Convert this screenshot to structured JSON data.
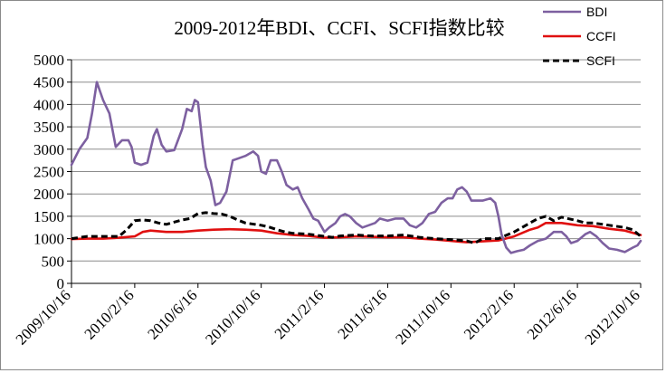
{
  "chart_data": {
    "type": "line",
    "title": "2009-2012年BDI、CCFI、SCFI指数比较",
    "xlabel": "",
    "ylabel": "",
    "ylim": [
      0,
      5000
    ],
    "yticks": [
      "0",
      "500",
      "1000",
      "1500",
      "2000",
      "2500",
      "3000",
      "3500",
      "4000",
      "4500",
      "5000"
    ],
    "xticks": [
      "2009/10/16",
      "2010/2/16",
      "2010/6/16",
      "2010/10/16",
      "2011/2/16",
      "2011/6/16",
      "2011/10/16",
      "2012/2/16",
      "2012/6/16",
      "2012/10/16"
    ],
    "grid": "horizontal",
    "legend_position": "top-right",
    "series": [
      {
        "name": "BDI",
        "color": "#7d60a0",
        "style": "solid",
        "points": [
          [
            0,
            2650
          ],
          [
            0.5,
            3000
          ],
          [
            1,
            3250
          ],
          [
            1.3,
            3800
          ],
          [
            1.6,
            4500
          ],
          [
            2,
            4100
          ],
          [
            2.4,
            3800
          ],
          [
            2.8,
            3050
          ],
          [
            3.2,
            3200
          ],
          [
            3.6,
            3200
          ],
          [
            3.8,
            3050
          ],
          [
            4,
            2700
          ],
          [
            4.4,
            2650
          ],
          [
            4.8,
            2700
          ],
          [
            5.2,
            3300
          ],
          [
            5.4,
            3450
          ],
          [
            5.7,
            3100
          ],
          [
            6,
            2950
          ],
          [
            6.5,
            2980
          ],
          [
            7,
            3450
          ],
          [
            7.3,
            3900
          ],
          [
            7.6,
            3850
          ],
          [
            7.8,
            4100
          ],
          [
            8,
            4050
          ],
          [
            8.3,
            3100
          ],
          [
            8.5,
            2600
          ],
          [
            8.8,
            2300
          ],
          [
            9.1,
            1750
          ],
          [
            9.4,
            1800
          ],
          [
            9.8,
            2050
          ],
          [
            10.2,
            2750
          ],
          [
            10.6,
            2800
          ],
          [
            11,
            2850
          ],
          [
            11.5,
            2950
          ],
          [
            11.8,
            2850
          ],
          [
            12,
            2500
          ],
          [
            12.3,
            2450
          ],
          [
            12.6,
            2750
          ],
          [
            13,
            2750
          ],
          [
            13.3,
            2500
          ],
          [
            13.6,
            2200
          ],
          [
            14,
            2100
          ],
          [
            14.3,
            2150
          ],
          [
            14.6,
            1900
          ],
          [
            15,
            1650
          ],
          [
            15.3,
            1450
          ],
          [
            15.6,
            1400
          ],
          [
            16,
            1150
          ],
          [
            16.3,
            1250
          ],
          [
            16.7,
            1350
          ],
          [
            17,
            1500
          ],
          [
            17.3,
            1550
          ],
          [
            17.6,
            1500
          ],
          [
            18,
            1350
          ],
          [
            18.4,
            1250
          ],
          [
            18.8,
            1300
          ],
          [
            19.2,
            1350
          ],
          [
            19.5,
            1450
          ],
          [
            20,
            1400
          ],
          [
            20.5,
            1450
          ],
          [
            21,
            1450
          ],
          [
            21.4,
            1300
          ],
          [
            21.8,
            1250
          ],
          [
            22.2,
            1350
          ],
          [
            22.6,
            1550
          ],
          [
            23,
            1600
          ],
          [
            23.4,
            1800
          ],
          [
            23.8,
            1900
          ],
          [
            24.1,
            1900
          ],
          [
            24.4,
            2100
          ],
          [
            24.7,
            2150
          ],
          [
            25,
            2050
          ],
          [
            25.3,
            1850
          ],
          [
            25.6,
            1850
          ],
          [
            26,
            1850
          ],
          [
            26.5,
            1900
          ],
          [
            26.8,
            1800
          ],
          [
            27,
            1500
          ],
          [
            27.2,
            1100
          ],
          [
            27.5,
            800
          ],
          [
            27.8,
            680
          ],
          [
            28.2,
            720
          ],
          [
            28.6,
            750
          ],
          [
            29,
            850
          ],
          [
            29.5,
            950
          ],
          [
            30,
            1000
          ],
          [
            30.5,
            1150
          ],
          [
            31,
            1150
          ],
          [
            31.3,
            1050
          ],
          [
            31.6,
            900
          ],
          [
            32,
            950
          ],
          [
            32.5,
            1100
          ],
          [
            32.8,
            1150
          ],
          [
            33.2,
            1050
          ],
          [
            33.6,
            900
          ],
          [
            34,
            780
          ],
          [
            34.5,
            750
          ],
          [
            35,
            700
          ],
          [
            35.5,
            800
          ],
          [
            35.8,
            850
          ],
          [
            36,
            950
          ]
        ]
      },
      {
        "name": "CCFI",
        "color": "#e01010",
        "style": "solid",
        "points": [
          [
            0,
            990
          ],
          [
            1,
            1000
          ],
          [
            2,
            1000
          ],
          [
            3,
            1020
          ],
          [
            4,
            1050
          ],
          [
            4.5,
            1150
          ],
          [
            5,
            1180
          ],
          [
            6,
            1150
          ],
          [
            7,
            1150
          ],
          [
            8,
            1180
          ],
          [
            9,
            1200
          ],
          [
            10,
            1210
          ],
          [
            11,
            1200
          ],
          [
            12,
            1180
          ],
          [
            13,
            1120
          ],
          [
            14,
            1080
          ],
          [
            15,
            1060
          ],
          [
            16,
            1020
          ],
          [
            17,
            1030
          ],
          [
            18,
            1050
          ],
          [
            19,
            1040
          ],
          [
            20,
            1030
          ],
          [
            21,
            1030
          ],
          [
            22,
            1000
          ],
          [
            23,
            980
          ],
          [
            24,
            950
          ],
          [
            25,
            920
          ],
          [
            26,
            940
          ],
          [
            27,
            960
          ],
          [
            28,
            1050
          ],
          [
            29,
            1200
          ],
          [
            29.5,
            1250
          ],
          [
            30,
            1350
          ],
          [
            31,
            1350
          ],
          [
            32,
            1300
          ],
          [
            33,
            1280
          ],
          [
            34,
            1220
          ],
          [
            35,
            1180
          ],
          [
            36,
            1080
          ]
        ]
      },
      {
        "name": "SCFI",
        "color": "#000000",
        "style": "dashed",
        "points": [
          [
            0,
            1000
          ],
          [
            1,
            1050
          ],
          [
            2,
            1050
          ],
          [
            3,
            1050
          ],
          [
            3.5,
            1200
          ],
          [
            4,
            1400
          ],
          [
            4.5,
            1420
          ],
          [
            5,
            1400
          ],
          [
            5.5,
            1350
          ],
          [
            6,
            1320
          ],
          [
            7,
            1420
          ],
          [
            7.5,
            1450
          ],
          [
            8,
            1560
          ],
          [
            8.5,
            1580
          ],
          [
            9,
            1560
          ],
          [
            9.5,
            1550
          ],
          [
            10,
            1500
          ],
          [
            10.5,
            1420
          ],
          [
            11,
            1350
          ],
          [
            12,
            1300
          ],
          [
            12.5,
            1260
          ],
          [
            13,
            1200
          ],
          [
            13.5,
            1150
          ],
          [
            14,
            1120
          ],
          [
            15,
            1100
          ],
          [
            16,
            1050
          ],
          [
            16.5,
            1030
          ],
          [
            17,
            1060
          ],
          [
            18,
            1080
          ],
          [
            19,
            1060
          ],
          [
            20,
            1060
          ],
          [
            21,
            1080
          ],
          [
            22,
            1030
          ],
          [
            23,
            1000
          ],
          [
            24,
            980
          ],
          [
            25,
            950
          ],
          [
            25.5,
            900
          ],
          [
            26,
            1000
          ],
          [
            27,
            1000
          ],
          [
            28,
            1150
          ],
          [
            29,
            1350
          ],
          [
            29.5,
            1450
          ],
          [
            30,
            1500
          ],
          [
            30.5,
            1400
          ],
          [
            31,
            1480
          ],
          [
            32,
            1400
          ],
          [
            32.5,
            1350
          ],
          [
            33,
            1350
          ],
          [
            34,
            1300
          ],
          [
            35,
            1250
          ],
          [
            35.5,
            1200
          ],
          [
            36,
            1050
          ]
        ]
      }
    ]
  }
}
